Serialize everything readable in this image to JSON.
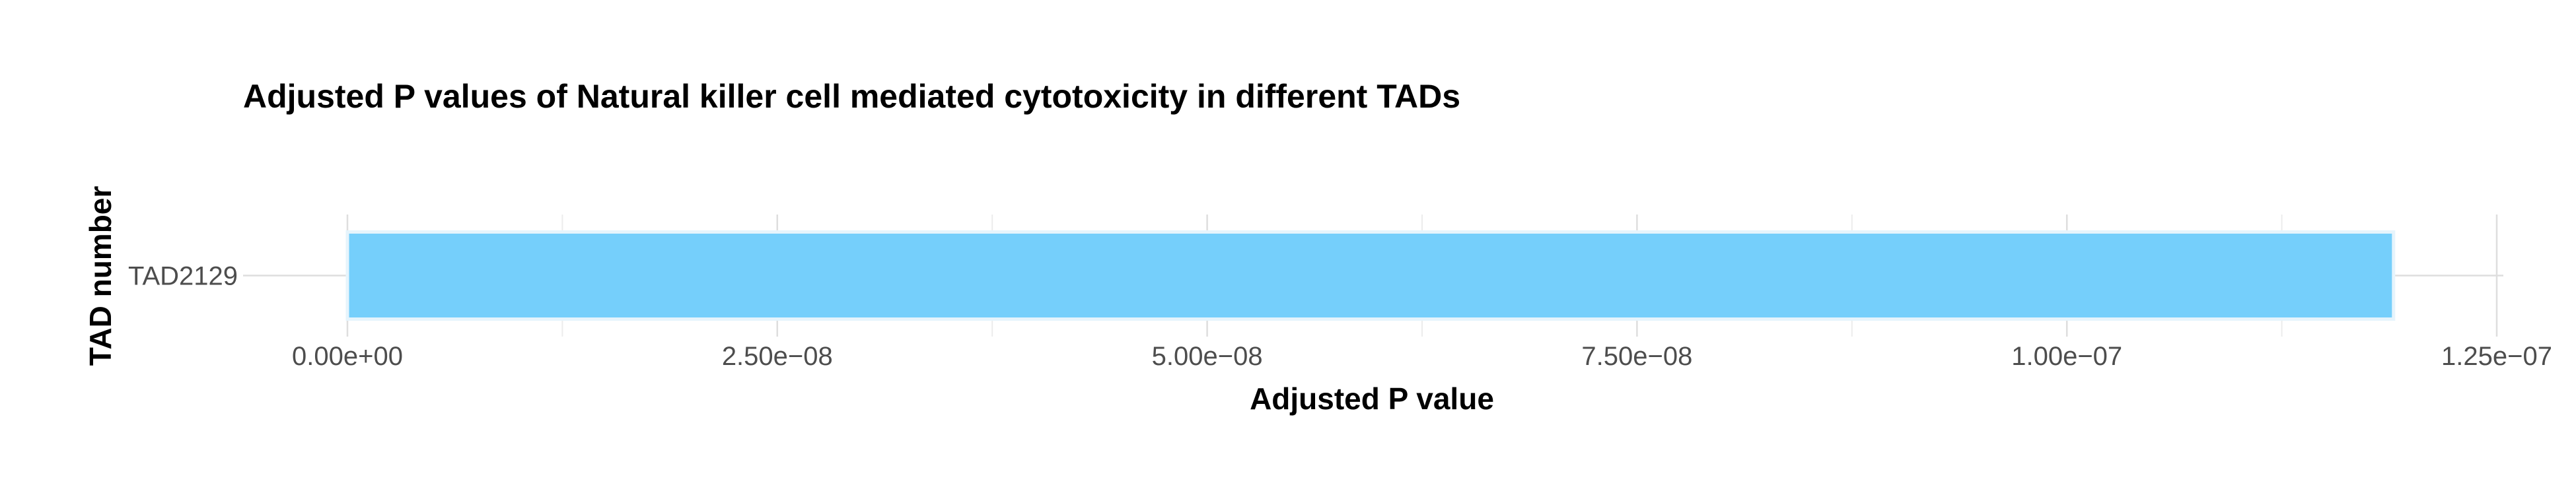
{
  "chart_data": {
    "type": "bar",
    "orientation": "horizontal",
    "title": "Adjusted P values of Natural killer cell mediated cytotoxicity in different TADs",
    "xlabel": "Adjusted P value",
    "ylabel": "TAD number",
    "categories": [
      "TAD2129"
    ],
    "values": [
      1.19e-07
    ],
    "xlim": [
      0,
      1.25e-07
    ],
    "xticks": [
      0,
      2.5e-08,
      5e-08,
      7.5e-08,
      1e-07,
      1.25e-07
    ],
    "xtick_labels": [
      "0.00e+00",
      "2.50e−08",
      "5.00e−08",
      "7.50e−08",
      "1.00e−07",
      "1.25e−07"
    ],
    "grid": true,
    "legend": "none",
    "bar_color": "#75CFFB",
    "bar_outline_color": "#E6F4FC"
  }
}
